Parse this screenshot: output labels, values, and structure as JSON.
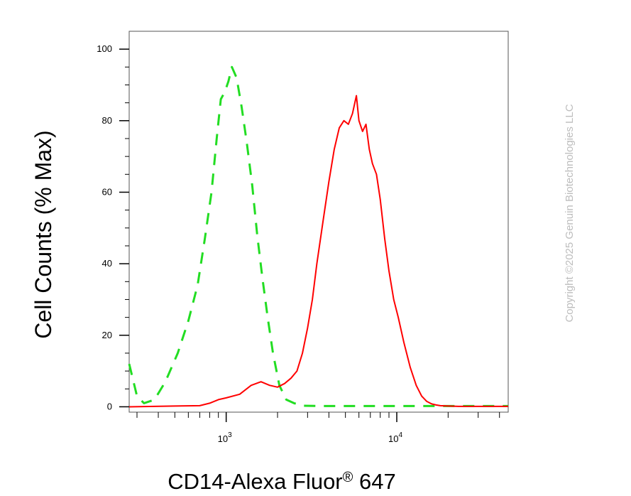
{
  "chart_data": {
    "type": "line",
    "xlabel": "CD14-Alexa Fluor",
    "xlabel_sup": "®",
    "xlabel_suffix": " 647",
    "ylabel": "Cell Counts (% Max)",
    "x_scale": "log",
    "xlim": [
      270,
      45000
    ],
    "ylim": [
      -1.5,
      105
    ],
    "y_ticks": [
      0,
      20,
      40,
      60,
      80,
      100
    ],
    "y_tick_labels": [
      "0",
      "20",
      "40",
      "60",
      "80",
      "100"
    ],
    "x_ticks": [
      1000,
      10000
    ],
    "x_tick_labels": [
      {
        "base": "10",
        "exp": "3"
      },
      {
        "base": "10",
        "exp": "4"
      }
    ],
    "grid": false,
    "series": [
      {
        "color": "#22dd22",
        "style": "dashed",
        "x": [
          270,
          300,
          330,
          380,
          440,
          520,
          600,
          680,
          750,
          820,
          880,
          930,
          980,
          1030,
          1080,
          1150,
          1230,
          1320,
          1420,
          1520,
          1630,
          1750,
          1880,
          2050,
          2250,
          2500,
          2800,
          3500,
          5000,
          10000,
          20000,
          45000
        ],
        "y": [
          12,
          3,
          1,
          2,
          7,
          15,
          24,
          34,
          47,
          60,
          75,
          86,
          88,
          91,
          95,
          92,
          84,
          74,
          62,
          48,
          36,
          25,
          15,
          6,
          2,
          1,
          0.3,
          0.2,
          0.2,
          0.2,
          0.2,
          0.2
        ]
      },
      {
        "color": "#ff0000",
        "style": "solid",
        "x": [
          270,
          500,
          700,
          800,
          900,
          1000,
          1200,
          1400,
          1600,
          1800,
          2000,
          2200,
          2400,
          2600,
          2800,
          3000,
          3200,
          3400,
          3700,
          4000,
          4300,
          4600,
          4900,
          5200,
          5500,
          5800,
          6000,
          6300,
          6600,
          6900,
          7200,
          7600,
          8000,
          8500,
          9000,
          9600,
          10200,
          11000,
          12000,
          13000,
          14000,
          15000,
          16000,
          17000,
          18000,
          20000,
          23000,
          27000,
          32000,
          40000,
          45000
        ],
        "y": [
          0,
          0.2,
          0.3,
          1,
          2,
          2.5,
          3.5,
          6,
          7,
          6,
          5.5,
          6.5,
          8,
          10,
          15,
          22,
          30,
          40,
          52,
          63,
          72,
          78,
          80,
          79,
          82,
          87,
          80,
          77,
          79,
          72,
          68,
          65,
          58,
          47,
          38,
          30,
          25,
          18,
          11,
          6,
          3,
          1.5,
          0.8,
          0.5,
          0.3,
          0.2,
          0.1,
          0.1,
          0.1,
          0.1,
          0.1
        ]
      }
    ]
  },
  "watermark": "Copyright ©2025 Genuin Biotechnologies LLC"
}
